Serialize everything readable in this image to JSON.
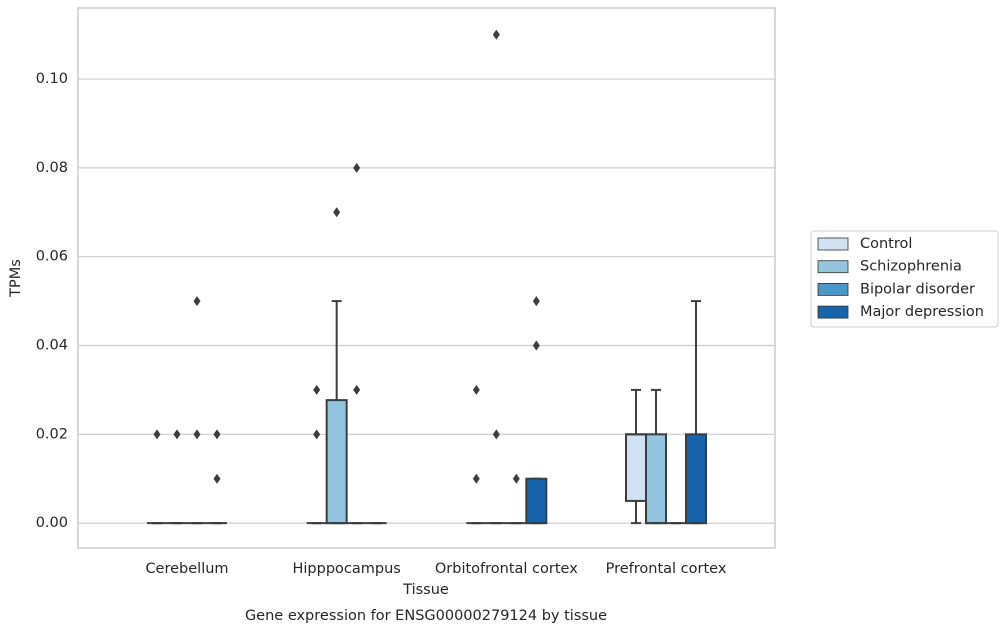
{
  "chart_data": {
    "type": "box",
    "title": "Gene expression for ENSG00000279124 by tissue",
    "x_label": "Tissue",
    "y_label": "TPMs",
    "categories": [
      "Cerebellum",
      "Hipppocampus",
      "Orbitofrontal cortex",
      "Prefrontal cortex"
    ],
    "ylim": [
      -0.0056,
      0.116
    ],
    "yticks": [
      {
        "value": 0,
        "label": "0.00"
      },
      {
        "value": 0.02,
        "label": "0.02"
      },
      {
        "value": 0.04,
        "label": "0.04"
      },
      {
        "value": 0.06,
        "label": "0.06"
      },
      {
        "value": 0.08,
        "label": "0.08"
      },
      {
        "value": 0.1,
        "label": "0.10"
      }
    ],
    "grid": true,
    "legend_position": "right",
    "series": [
      {
        "name": "Control",
        "color": "#cfe1f2",
        "boxes": [
          {
            "whislo": 0,
            "q1": 0,
            "med": 0,
            "q3": 0,
            "whishi": 0,
            "fliers": [
              0.02
            ]
          },
          {
            "whislo": 0,
            "q1": 0,
            "med": 0,
            "q3": 0,
            "whishi": 0,
            "fliers": [
              0.03,
              0.02
            ]
          },
          {
            "whislo": 0,
            "q1": 0,
            "med": 0,
            "q3": 0,
            "whishi": 0,
            "fliers": [
              0.03,
              0.01
            ]
          },
          {
            "whislo": 0,
            "q1": 0.005,
            "med": 0.02,
            "q3": 0.02,
            "whishi": 0.03,
            "fliers": []
          }
        ]
      },
      {
        "name": "Schizophrenia",
        "color": "#93c4de",
        "boxes": [
          {
            "whislo": 0,
            "q1": 0,
            "med": 0,
            "q3": 0,
            "whishi": 0,
            "fliers": [
              0.02
            ]
          },
          {
            "whislo": 0,
            "q1": 0,
            "med": 0,
            "q3": 0.0277,
            "whishi": 0.05,
            "fliers": [
              0.07
            ]
          },
          {
            "whislo": 0,
            "q1": 0,
            "med": 0,
            "q3": 0,
            "whishi": 0,
            "fliers": [
              0.02,
              0.11
            ]
          },
          {
            "whislo": 0,
            "q1": 0,
            "med": 0,
            "q3": 0.02,
            "whishi": 0.03,
            "fliers": []
          }
        ]
      },
      {
        "name": "Bipolar disorder",
        "color": "#4a98c9",
        "boxes": [
          {
            "whislo": 0,
            "q1": 0,
            "med": 0,
            "q3": 0,
            "whishi": 0,
            "fliers": [
              0.02,
              0.05
            ]
          },
          {
            "whislo": 0,
            "q1": 0,
            "med": 0,
            "q3": 0,
            "whishi": 0,
            "fliers": [
              0.03,
              0.08
            ]
          },
          {
            "whislo": 0,
            "q1": 0,
            "med": 0,
            "q3": 0,
            "whishi": 0,
            "fliers": [
              0.01
            ]
          },
          {
            "whislo": 0,
            "q1": 0,
            "med": 0,
            "q3": 0,
            "whishi": 0,
            "fliers": []
          }
        ]
      },
      {
        "name": "Major depression",
        "color": "#1764ab",
        "boxes": [
          {
            "whislo": 0,
            "q1": 0,
            "med": 0,
            "q3": 0,
            "whishi": 0,
            "fliers": [
              0.02,
              0.01
            ]
          },
          {
            "whislo": 0,
            "q1": 0,
            "med": 0,
            "q3": 0,
            "whishi": 0,
            "fliers": []
          },
          {
            "whislo": 0,
            "q1": 0,
            "med": 0,
            "q3": 0.01,
            "whishi": 0.01,
            "fliers": [
              0.04,
              0.05
            ]
          },
          {
            "whislo": 0,
            "q1": 0,
            "med": 0,
            "q3": 0.02,
            "whishi": 0.05,
            "fliers": []
          }
        ]
      }
    ]
  }
}
